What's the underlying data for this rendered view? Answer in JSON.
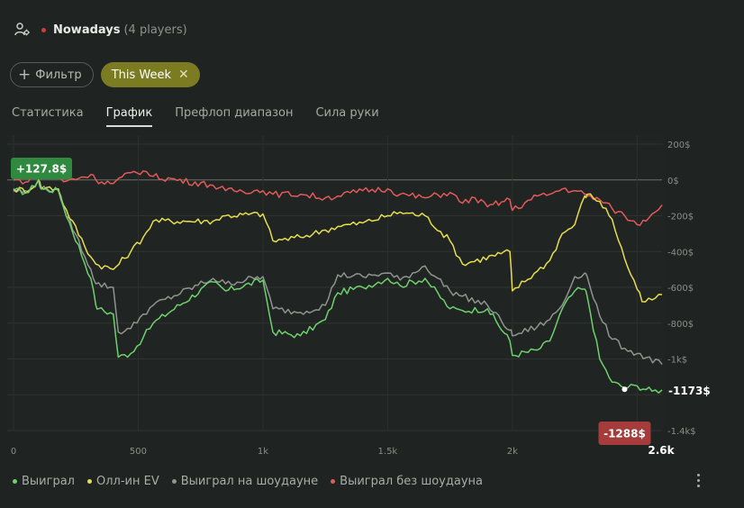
{
  "header": {
    "name": "Nowadays",
    "count": "(4 players)"
  },
  "filters": {
    "filter_label": "Фильтр",
    "week_label": "This Week"
  },
  "tabs": [
    {
      "label": "Статистика",
      "active": false
    },
    {
      "label": "График",
      "active": true
    },
    {
      "label": "Префлоп диапазон",
      "active": false
    },
    {
      "label": "Сила руки",
      "active": false
    }
  ],
  "chart_data": {
    "type": "line",
    "x_ticks": [
      "0",
      "500",
      "1k",
      "1.5k",
      "2k"
    ],
    "x_end_label": "2.6k",
    "y_ticks": [
      {
        "value": 200,
        "label": "200$"
      },
      {
        "value": 0,
        "label": "0$"
      },
      {
        "value": -200,
        "label": "-200$"
      },
      {
        "value": -400,
        "label": "-400$"
      },
      {
        "value": -600,
        "label": "-600$"
      },
      {
        "value": -800,
        "label": "-800$"
      },
      {
        "value": -1000,
        "label": "-1k$"
      },
      {
        "value": -1200,
        "label": ""
      },
      {
        "value": -1400,
        "label": "-1.4k$"
      }
    ],
    "xlim": [
      0,
      2600
    ],
    "ylim": [
      -1400,
      200
    ],
    "grid": true,
    "series": [
      {
        "name": "Выиграл",
        "color": "#6fd16d",
        "x": [
          0,
          60,
          100,
          110,
          180,
          200,
          310,
          330,
          340,
          400,
          420,
          470,
          520,
          560,
          800,
          850,
          1000,
          1040,
          1150,
          1250,
          1300,
          1400,
          1500,
          1550,
          1650,
          1750,
          1800,
          1900,
          1990,
          2000,
          2100,
          2150,
          2200,
          2250,
          2290,
          2300,
          2350,
          2400,
          2450,
          2500,
          2560,
          2600
        ],
        "y": [
          -60,
          -70,
          0,
          -50,
          -60,
          -150,
          -550,
          -700,
          -720,
          -750,
          -990,
          -970,
          -880,
          -800,
          -570,
          -620,
          -560,
          -850,
          -870,
          -780,
          -630,
          -600,
          -550,
          -590,
          -550,
          -720,
          -730,
          -720,
          -900,
          -980,
          -950,
          -900,
          -720,
          -620,
          -610,
          -650,
          -1000,
          -1130,
          -1160,
          -1150,
          -1180,
          -1173
        ]
      },
      {
        "name": "Олл-ин EV",
        "color": "#e6dd4f",
        "x": [
          0,
          60,
          100,
          110,
          180,
          200,
          310,
          330,
          400,
          470,
          520,
          560,
          800,
          850,
          1000,
          1040,
          1150,
          1250,
          1300,
          1400,
          1500,
          1550,
          1650,
          1750,
          1800,
          1990,
          2000,
          2100,
          2150,
          2200,
          2250,
          2290,
          2300,
          2350,
          2400,
          2450,
          2500,
          2520,
          2560,
          2600
        ],
        "y": [
          -50,
          -60,
          0,
          -40,
          -50,
          -140,
          -430,
          -470,
          -500,
          -400,
          -320,
          -230,
          -230,
          -200,
          -190,
          -340,
          -320,
          -280,
          -260,
          -240,
          -200,
          -180,
          -200,
          -340,
          -470,
          -400,
          -620,
          -510,
          -450,
          -300,
          -250,
          -90,
          -80,
          -120,
          -220,
          -440,
          -610,
          -680,
          -670,
          -640
        ]
      },
      {
        "name": "Выиграл на шоудауне",
        "color": "#8f948f",
        "x": [
          0,
          60,
          100,
          110,
          180,
          200,
          310,
          330,
          400,
          420,
          470,
          520,
          560,
          800,
          850,
          1000,
          1040,
          1150,
          1250,
          1300,
          1400,
          1500,
          1550,
          1650,
          1750,
          1800,
          1900,
          1990,
          2000,
          2100,
          2150,
          2200,
          2250,
          2290,
          2300,
          2350,
          2400,
          2450,
          2500,
          2600
        ],
        "y": [
          -60,
          -70,
          0,
          -50,
          -60,
          -150,
          -500,
          -580,
          -600,
          -850,
          -830,
          -750,
          -700,
          -550,
          -580,
          -540,
          -720,
          -740,
          -700,
          -530,
          -540,
          -520,
          -560,
          -480,
          -620,
          -650,
          -700,
          -840,
          -870,
          -820,
          -780,
          -700,
          -540,
          -520,
          -540,
          -760,
          -890,
          -940,
          -970,
          -1030
        ]
      },
      {
        "name": "Выиграл без шоудауна",
        "color": "#e35a5a",
        "x": [
          0,
          60,
          100,
          110,
          180,
          200,
          310,
          330,
          400,
          470,
          520,
          560,
          800,
          850,
          1000,
          1040,
          1150,
          1250,
          1300,
          1400,
          1500,
          1550,
          1650,
          1750,
          1800,
          1850,
          1900,
          1990,
          2000,
          2100,
          2150,
          2200,
          2250,
          2290,
          2300,
          2350,
          2400,
          2450,
          2500,
          2560,
          2600
        ],
        "y": [
          0,
          -10,
          60,
          20,
          10,
          -10,
          30,
          0,
          -20,
          40,
          50,
          20,
          -30,
          -60,
          -60,
          -80,
          -80,
          -100,
          -90,
          -60,
          -50,
          -80,
          -100,
          -70,
          -130,
          -100,
          -150,
          -110,
          -170,
          -90,
          -80,
          -50,
          -60,
          -80,
          -90,
          -110,
          -160,
          -200,
          -250,
          -190,
          -140
        ]
      }
    ],
    "annotations": [
      {
        "label": "+127.8$",
        "style": "green"
      },
      {
        "label": "-1173$",
        "style": "plain"
      },
      {
        "label": "-1288$",
        "style": "red"
      }
    ]
  },
  "legend": [
    {
      "label": "Выиграл",
      "color": "#6fd16d"
    },
    {
      "label": "Олл-ин EV",
      "color": "#e6dd4f"
    },
    {
      "label": "Выиграл на шоудауне",
      "color": "#8f948f"
    },
    {
      "label": "Выиграл без шоудауна",
      "color": "#e35a5a"
    }
  ]
}
